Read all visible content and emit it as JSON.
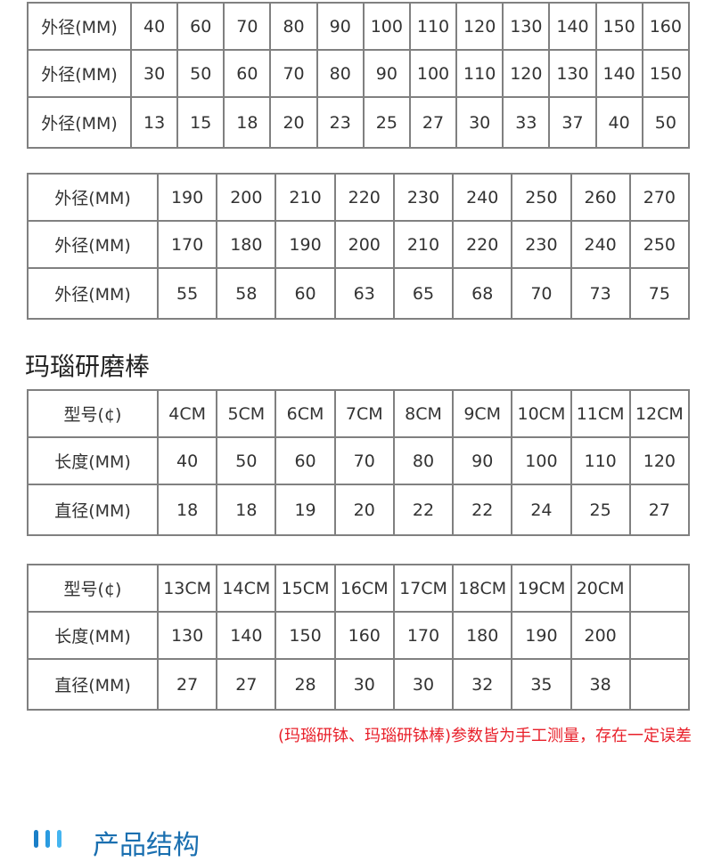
{
  "table1": {
    "rows": [
      {
        "label": "外径(MM)",
        "values": [
          "40",
          "60",
          "70",
          "80",
          "90",
          "100",
          "110",
          "120",
          "130",
          "140",
          "150",
          "160"
        ]
      },
      {
        "label": "外径(MM)",
        "values": [
          "30",
          "50",
          "60",
          "70",
          "80",
          "90",
          "100",
          "110",
          "120",
          "130",
          "140",
          "150"
        ]
      },
      {
        "label": "外径(MM)",
        "values": [
          "13",
          "15",
          "18",
          "20",
          "23",
          "25",
          "27",
          "30",
          "33",
          "37",
          "40",
          "50"
        ]
      }
    ]
  },
  "table2": {
    "rows": [
      {
        "label": "外径(MM)",
        "values": [
          "190",
          "200",
          "210",
          "220",
          "230",
          "240",
          "250",
          "260",
          "270"
        ]
      },
      {
        "label": "外径(MM)",
        "values": [
          "170",
          "180",
          "190",
          "200",
          "210",
          "220",
          "230",
          "240",
          "250"
        ]
      },
      {
        "label": "外径(MM)",
        "values": [
          "55",
          "58",
          "60",
          "63",
          "65",
          "68",
          "70",
          "73",
          "75"
        ]
      }
    ]
  },
  "heading": "玛瑙研磨棒",
  "table3": {
    "rows": [
      {
        "label": "型号(¢)",
        "values": [
          "4CM",
          "5CM",
          "6CM",
          "7CM",
          "8CM",
          "9CM",
          "10CM",
          "11CM",
          "12CM"
        ]
      },
      {
        "label": "长度(MM)",
        "values": [
          "40",
          "50",
          "60",
          "70",
          "80",
          "90",
          "100",
          "110",
          "120"
        ]
      },
      {
        "label": "直径(MM)",
        "values": [
          "18",
          "18",
          "19",
          "20",
          "22",
          "22",
          "24",
          "25",
          "27"
        ]
      }
    ]
  },
  "table4": {
    "rows": [
      {
        "label": "型号(¢)",
        "values": [
          "13CM",
          "14CM",
          "15CM",
          "16CM",
          "17CM",
          "18CM",
          "19CM",
          "20CM",
          ""
        ]
      },
      {
        "label": "长度(MM)",
        "values": [
          "130",
          "140",
          "150",
          "160",
          "170",
          "180",
          "190",
          "200",
          ""
        ]
      },
      {
        "label": "直径(MM)",
        "values": [
          "27",
          "27",
          "28",
          "30",
          "30",
          "32",
          "35",
          "38",
          ""
        ]
      }
    ]
  },
  "note": "(玛瑙研钵、玛瑙研钵棒)参数皆为手工测量，存在一定误差",
  "section_title": "产品结构",
  "colors": {
    "note": "#e8202a",
    "section": "#1a6fb0",
    "border": "#808080"
  }
}
